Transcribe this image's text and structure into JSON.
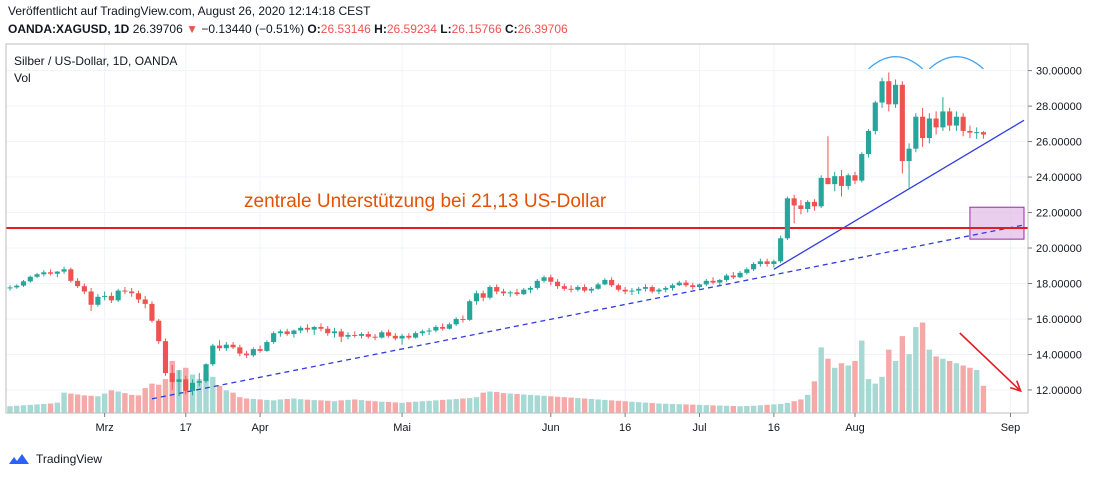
{
  "header": {
    "published": "Veröffentlicht auf TradingView.com, August 26, 2020 12:14:18 CEST",
    "symbol": "OANDA:XAGUSD, 1D",
    "last": "26.39706",
    "change_arrow": "▼",
    "change": "−0.13440 (−0.51%)",
    "o_label": "O:",
    "o": "26.53146",
    "h_label": "H:",
    "h": "26.59234",
    "l_label": "L:",
    "l": "26.15766",
    "c_label": "C:",
    "c": "26.39706"
  },
  "legend": {
    "title": "Silber / US-Dollar, 1D, OANDA",
    "vol": "Vol"
  },
  "annotation": {
    "text": "zentrale Unterstützung bei 21,13 US-Dollar"
  },
  "footer": {
    "brand": "TradingView",
    "logo_icon": "tradingview-logo-icon"
  },
  "colors": {
    "up": "#26a69a",
    "down": "#ef5350",
    "vol_up": "#a7d9d4",
    "vol_down": "#f5aaa9",
    "support": "#e51c23",
    "trend": "#2f3de0",
    "annotation": "#e65100",
    "arc": "#42a5f5",
    "box_fill": "#e1bee7",
    "box_stroke": "#9c27b0"
  },
  "chart_data": {
    "type": "candlestick",
    "symbol": "XAGUSD",
    "y_ticks": [
      "30.00000",
      "28.00000",
      "26.00000",
      "24.00000",
      "22.00000",
      "20.00000",
      "18.00000",
      "16.00000",
      "14.00000",
      "12.00000"
    ],
    "y_tick_values": [
      30,
      28,
      26,
      24,
      22,
      20,
      18,
      16,
      14,
      12
    ],
    "ylim": [
      10.7,
      31.5
    ],
    "x_ticks": [
      {
        "label": "Mrz",
        "index": 14
      },
      {
        "label": "17",
        "index": 26
      },
      {
        "label": "Apr",
        "index": 37
      },
      {
        "label": "Mai",
        "index": 58
      },
      {
        "label": "Jun",
        "index": 80
      },
      {
        "label": "16",
        "index": 91
      },
      {
        "label": "Jul",
        "index": 102
      },
      {
        "label": "16",
        "index": 113
      },
      {
        "label": "Aug",
        "index": 125
      },
      {
        "label": "Sep",
        "index": 148
      }
    ],
    "x_index_range": [
      0,
      150
    ],
    "support_level": 21.13,
    "candles_ohlc": [
      [
        17.75,
        17.9,
        17.6,
        17.78
      ],
      [
        17.78,
        17.95,
        17.7,
        17.88
      ],
      [
        17.88,
        18.2,
        17.8,
        18.12
      ],
      [
        18.12,
        18.45,
        18.05,
        18.38
      ],
      [
        18.38,
        18.6,
        18.3,
        18.52
      ],
      [
        18.52,
        18.75,
        18.4,
        18.63
      ],
      [
        18.63,
        18.8,
        18.45,
        18.55
      ],
      [
        18.55,
        18.7,
        18.35,
        18.67
      ],
      [
        18.67,
        18.95,
        18.55,
        18.8
      ],
      [
        18.8,
        18.9,
        18.05,
        18.15
      ],
      [
        18.15,
        18.3,
        17.75,
        17.85
      ],
      [
        17.85,
        18.0,
        17.4,
        17.55
      ],
      [
        17.55,
        17.75,
        16.45,
        16.8
      ],
      [
        16.8,
        17.4,
        16.7,
        17.25
      ],
      [
        17.25,
        17.55,
        17.05,
        17.3
      ],
      [
        17.3,
        17.5,
        16.9,
        17.05
      ],
      [
        17.05,
        17.7,
        16.95,
        17.6
      ],
      [
        17.6,
        17.8,
        17.4,
        17.55
      ],
      [
        17.55,
        17.75,
        17.25,
        17.45
      ],
      [
        17.45,
        17.6,
        16.9,
        17.1
      ],
      [
        17.1,
        17.3,
        16.6,
        16.85
      ],
      [
        16.85,
        17.0,
        15.8,
        15.9
      ],
      [
        15.9,
        16.0,
        14.6,
        14.75
      ],
      [
        14.75,
        14.9,
        12.8,
        12.95
      ],
      [
        12.95,
        13.4,
        12.0,
        12.45
      ],
      [
        12.45,
        13.1,
        11.65,
        12.6
      ],
      [
        12.6,
        12.8,
        11.75,
        11.95
      ],
      [
        11.95,
        12.6,
        11.7,
        12.4
      ],
      [
        12.4,
        12.95,
        12.2,
        12.5
      ],
      [
        12.5,
        13.5,
        12.4,
        13.45
      ],
      [
        13.45,
        14.6,
        13.35,
        14.5
      ],
      [
        14.5,
        14.8,
        14.2,
        14.35
      ],
      [
        14.35,
        14.7,
        14.2,
        14.55
      ],
      [
        14.55,
        14.7,
        14.3,
        14.4
      ],
      [
        14.4,
        14.55,
        13.9,
        14.05
      ],
      [
        14.05,
        14.2,
        13.8,
        13.95
      ],
      [
        13.95,
        14.4,
        13.85,
        14.3
      ],
      [
        14.3,
        14.5,
        14.1,
        14.2
      ],
      [
        14.2,
        14.8,
        14.15,
        14.7
      ],
      [
        14.7,
        15.3,
        14.6,
        15.2
      ],
      [
        15.2,
        15.4,
        15.0,
        15.3
      ],
      [
        15.3,
        15.45,
        15.05,
        15.15
      ],
      [
        15.15,
        15.4,
        14.95,
        15.35
      ],
      [
        15.35,
        15.6,
        15.2,
        15.5
      ],
      [
        15.5,
        15.7,
        15.25,
        15.4
      ],
      [
        15.4,
        15.6,
        15.1,
        15.55
      ],
      [
        15.55,
        15.75,
        15.3,
        15.45
      ],
      [
        15.45,
        15.6,
        15.05,
        15.2
      ],
      [
        15.2,
        15.5,
        14.95,
        15.3
      ],
      [
        15.3,
        15.45,
        14.7,
        15.0
      ],
      [
        15.0,
        15.25,
        14.85,
        15.1
      ],
      [
        15.1,
        15.3,
        14.95,
        15.05
      ],
      [
        15.05,
        15.25,
        14.9,
        15.15
      ],
      [
        15.15,
        15.3,
        14.9,
        15.0
      ],
      [
        15.0,
        15.15,
        14.8,
        14.95
      ],
      [
        14.95,
        15.35,
        14.9,
        15.25
      ],
      [
        15.25,
        15.4,
        14.95,
        15.05
      ],
      [
        15.05,
        15.2,
        14.8,
        14.9
      ],
      [
        14.9,
        15.15,
        14.55,
        15.05
      ],
      [
        15.05,
        15.2,
        14.85,
        14.95
      ],
      [
        14.95,
        15.3,
        14.9,
        15.2
      ],
      [
        15.2,
        15.4,
        15.05,
        15.3
      ],
      [
        15.3,
        15.5,
        15.1,
        15.35
      ],
      [
        15.35,
        15.65,
        15.25,
        15.55
      ],
      [
        15.55,
        15.75,
        15.35,
        15.45
      ],
      [
        15.45,
        15.8,
        15.4,
        15.7
      ],
      [
        15.7,
        16.1,
        15.6,
        16.0
      ],
      [
        16.0,
        16.2,
        15.8,
        15.95
      ],
      [
        15.95,
        17.1,
        15.9,
        17.0
      ],
      [
        17.0,
        17.6,
        16.8,
        17.45
      ],
      [
        17.45,
        17.6,
        17.0,
        17.2
      ],
      [
        17.2,
        17.9,
        17.1,
        17.8
      ],
      [
        17.8,
        17.95,
        17.4,
        17.55
      ],
      [
        17.55,
        17.7,
        17.3,
        17.45
      ],
      [
        17.45,
        17.6,
        17.25,
        17.5
      ],
      [
        17.5,
        17.7,
        17.3,
        17.4
      ],
      [
        17.4,
        17.75,
        17.35,
        17.65
      ],
      [
        17.65,
        17.85,
        17.45,
        17.75
      ],
      [
        17.75,
        18.25,
        17.65,
        18.15
      ],
      [
        18.15,
        18.45,
        18.05,
        18.35
      ],
      [
        18.35,
        18.5,
        17.9,
        18.1
      ],
      [
        18.1,
        18.25,
        17.7,
        17.85
      ],
      [
        17.85,
        18.0,
        17.6,
        17.7
      ],
      [
        17.7,
        17.9,
        17.5,
        17.65
      ],
      [
        17.65,
        17.9,
        17.55,
        17.8
      ],
      [
        17.8,
        17.95,
        17.5,
        17.6
      ],
      [
        17.6,
        17.8,
        17.45,
        17.7
      ],
      [
        17.7,
        18.05,
        17.65,
        17.95
      ],
      [
        17.95,
        18.3,
        17.9,
        18.2
      ],
      [
        18.2,
        18.35,
        17.8,
        17.9
      ],
      [
        17.9,
        18.0,
        17.55,
        17.65
      ],
      [
        17.65,
        17.8,
        17.4,
        17.55
      ],
      [
        17.55,
        17.75,
        17.35,
        17.6
      ],
      [
        17.6,
        17.8,
        17.4,
        17.7
      ],
      [
        17.7,
        17.95,
        17.55,
        17.8
      ],
      [
        17.8,
        17.9,
        17.45,
        17.55
      ],
      [
        17.55,
        17.75,
        17.4,
        17.65
      ],
      [
        17.65,
        17.85,
        17.5,
        17.75
      ],
      [
        17.75,
        18.0,
        17.6,
        17.9
      ],
      [
        17.9,
        18.15,
        17.85,
        18.05
      ],
      [
        18.05,
        18.2,
        17.8,
        17.9
      ],
      [
        17.9,
        18.05,
        17.65,
        17.8
      ],
      [
        17.8,
        18.0,
        17.7,
        17.95
      ],
      [
        17.95,
        18.25,
        17.85,
        18.15
      ],
      [
        18.15,
        18.35,
        17.95,
        18.05
      ],
      [
        18.05,
        18.25,
        17.9,
        18.2
      ],
      [
        18.2,
        18.55,
        18.1,
        18.45
      ],
      [
        18.45,
        18.65,
        18.25,
        18.35
      ],
      [
        18.35,
        18.7,
        18.3,
        18.6
      ],
      [
        18.6,
        18.9,
        18.5,
        18.8
      ],
      [
        18.8,
        19.2,
        18.7,
        19.1
      ],
      [
        19.1,
        19.4,
        18.95,
        19.25
      ],
      [
        19.25,
        19.4,
        18.95,
        19.1
      ],
      [
        19.1,
        19.35,
        18.9,
        19.25
      ],
      [
        19.25,
        20.7,
        19.15,
        20.55
      ],
      [
        20.55,
        22.9,
        20.45,
        22.8
      ],
      [
        22.8,
        23.0,
        21.4,
        22.4
      ],
      [
        22.4,
        22.7,
        21.9,
        22.2
      ],
      [
        22.2,
        22.7,
        22.0,
        22.6
      ],
      [
        22.6,
        22.75,
        22.1,
        22.35
      ],
      [
        22.35,
        24.1,
        22.25,
        23.95
      ],
      [
        23.95,
        26.3,
        23.8,
        23.6
      ],
      [
        23.6,
        24.3,
        23.2,
        24.05
      ],
      [
        24.05,
        24.4,
        22.9,
        23.5
      ],
      [
        23.5,
        24.2,
        23.3,
        24.1
      ],
      [
        24.1,
        24.3,
        23.6,
        23.8
      ],
      [
        23.8,
        25.4,
        23.7,
        25.3
      ],
      [
        25.3,
        26.7,
        25.1,
        26.6
      ],
      [
        26.6,
        28.3,
        26.4,
        28.2
      ],
      [
        28.2,
        29.6,
        27.9,
        29.4
      ],
      [
        29.4,
        29.9,
        27.7,
        28.1
      ],
      [
        28.1,
        29.5,
        27.9,
        29.2
      ],
      [
        29.2,
        29.4,
        24.2,
        24.9
      ],
      [
        24.9,
        25.9,
        23.4,
        25.6
      ],
      [
        25.6,
        27.6,
        25.4,
        27.4
      ],
      [
        27.4,
        27.9,
        25.7,
        26.2
      ],
      [
        26.2,
        27.6,
        25.9,
        27.3
      ],
      [
        27.3,
        27.7,
        26.4,
        26.8
      ],
      [
        26.8,
        28.5,
        26.6,
        27.7
      ],
      [
        27.7,
        27.9,
        26.6,
        26.9
      ],
      [
        26.9,
        27.7,
        26.6,
        27.4
      ],
      [
        27.4,
        27.6,
        26.3,
        26.6
      ],
      [
        26.6,
        26.9,
        26.2,
        26.5
      ],
      [
        26.5,
        26.8,
        26.15,
        26.53
      ],
      [
        26.53,
        26.59,
        26.16,
        26.4
      ]
    ],
    "volume": [
      300,
      320,
      340,
      360,
      380,
      400,
      420,
      460,
      900,
      860,
      820,
      780,
      760,
      740,
      860,
      1000,
      950,
      880,
      800,
      780,
      1100,
      1300,
      1250,
      1500,
      2300,
      1900,
      2000,
      1700,
      1500,
      1800,
      1600,
      1200,
      1000,
      900,
      700,
      640,
      620,
      600,
      580,
      560,
      600,
      620,
      640,
      610,
      590,
      570,
      560,
      540,
      520,
      560,
      580,
      600,
      570,
      540,
      520,
      500,
      490,
      470,
      450,
      480,
      500,
      520,
      540,
      560,
      580,
      600,
      620,
      640,
      660,
      700,
      900,
      950,
      930,
      880,
      860,
      840,
      820,
      800,
      780,
      760,
      740,
      720,
      700,
      680,
      660,
      640,
      620,
      600,
      580,
      560,
      540,
      520,
      500,
      480,
      460,
      440,
      420,
      410,
      400,
      390,
      380,
      370,
      360,
      350,
      340,
      330,
      320,
      310,
      300,
      310,
      320,
      340,
      360,
      380,
      400,
      450,
      520,
      600,
      800,
      1400,
      2900,
      2400,
      2000,
      2200,
      2100,
      2300,
      3200,
      1500,
      1300,
      1600,
      2800,
      2300,
      3400,
      2600,
      3800,
      4000,
      2800,
      2500,
      2400,
      2300,
      2200,
      2100,
      2000,
      1900,
      1200
    ],
    "volume_max": 4200,
    "trendlines": [
      {
        "style": "dashed",
        "from": {
          "index": 21,
          "value": 11.5
        },
        "to": {
          "index": 150,
          "value": 21.3
        }
      },
      {
        "style": "solid",
        "from": {
          "index": 113,
          "value": 18.8
        },
        "to": {
          "index": 150,
          "value": 27.2
        }
      }
    ],
    "support_box": {
      "from_index": 142,
      "to_index": 150,
      "low": 20.5,
      "high": 22.3
    },
    "arcs": [
      {
        "from_index": 127,
        "to_index": 135
      },
      {
        "from_index": 136,
        "to_index": 144
      }
    ]
  }
}
